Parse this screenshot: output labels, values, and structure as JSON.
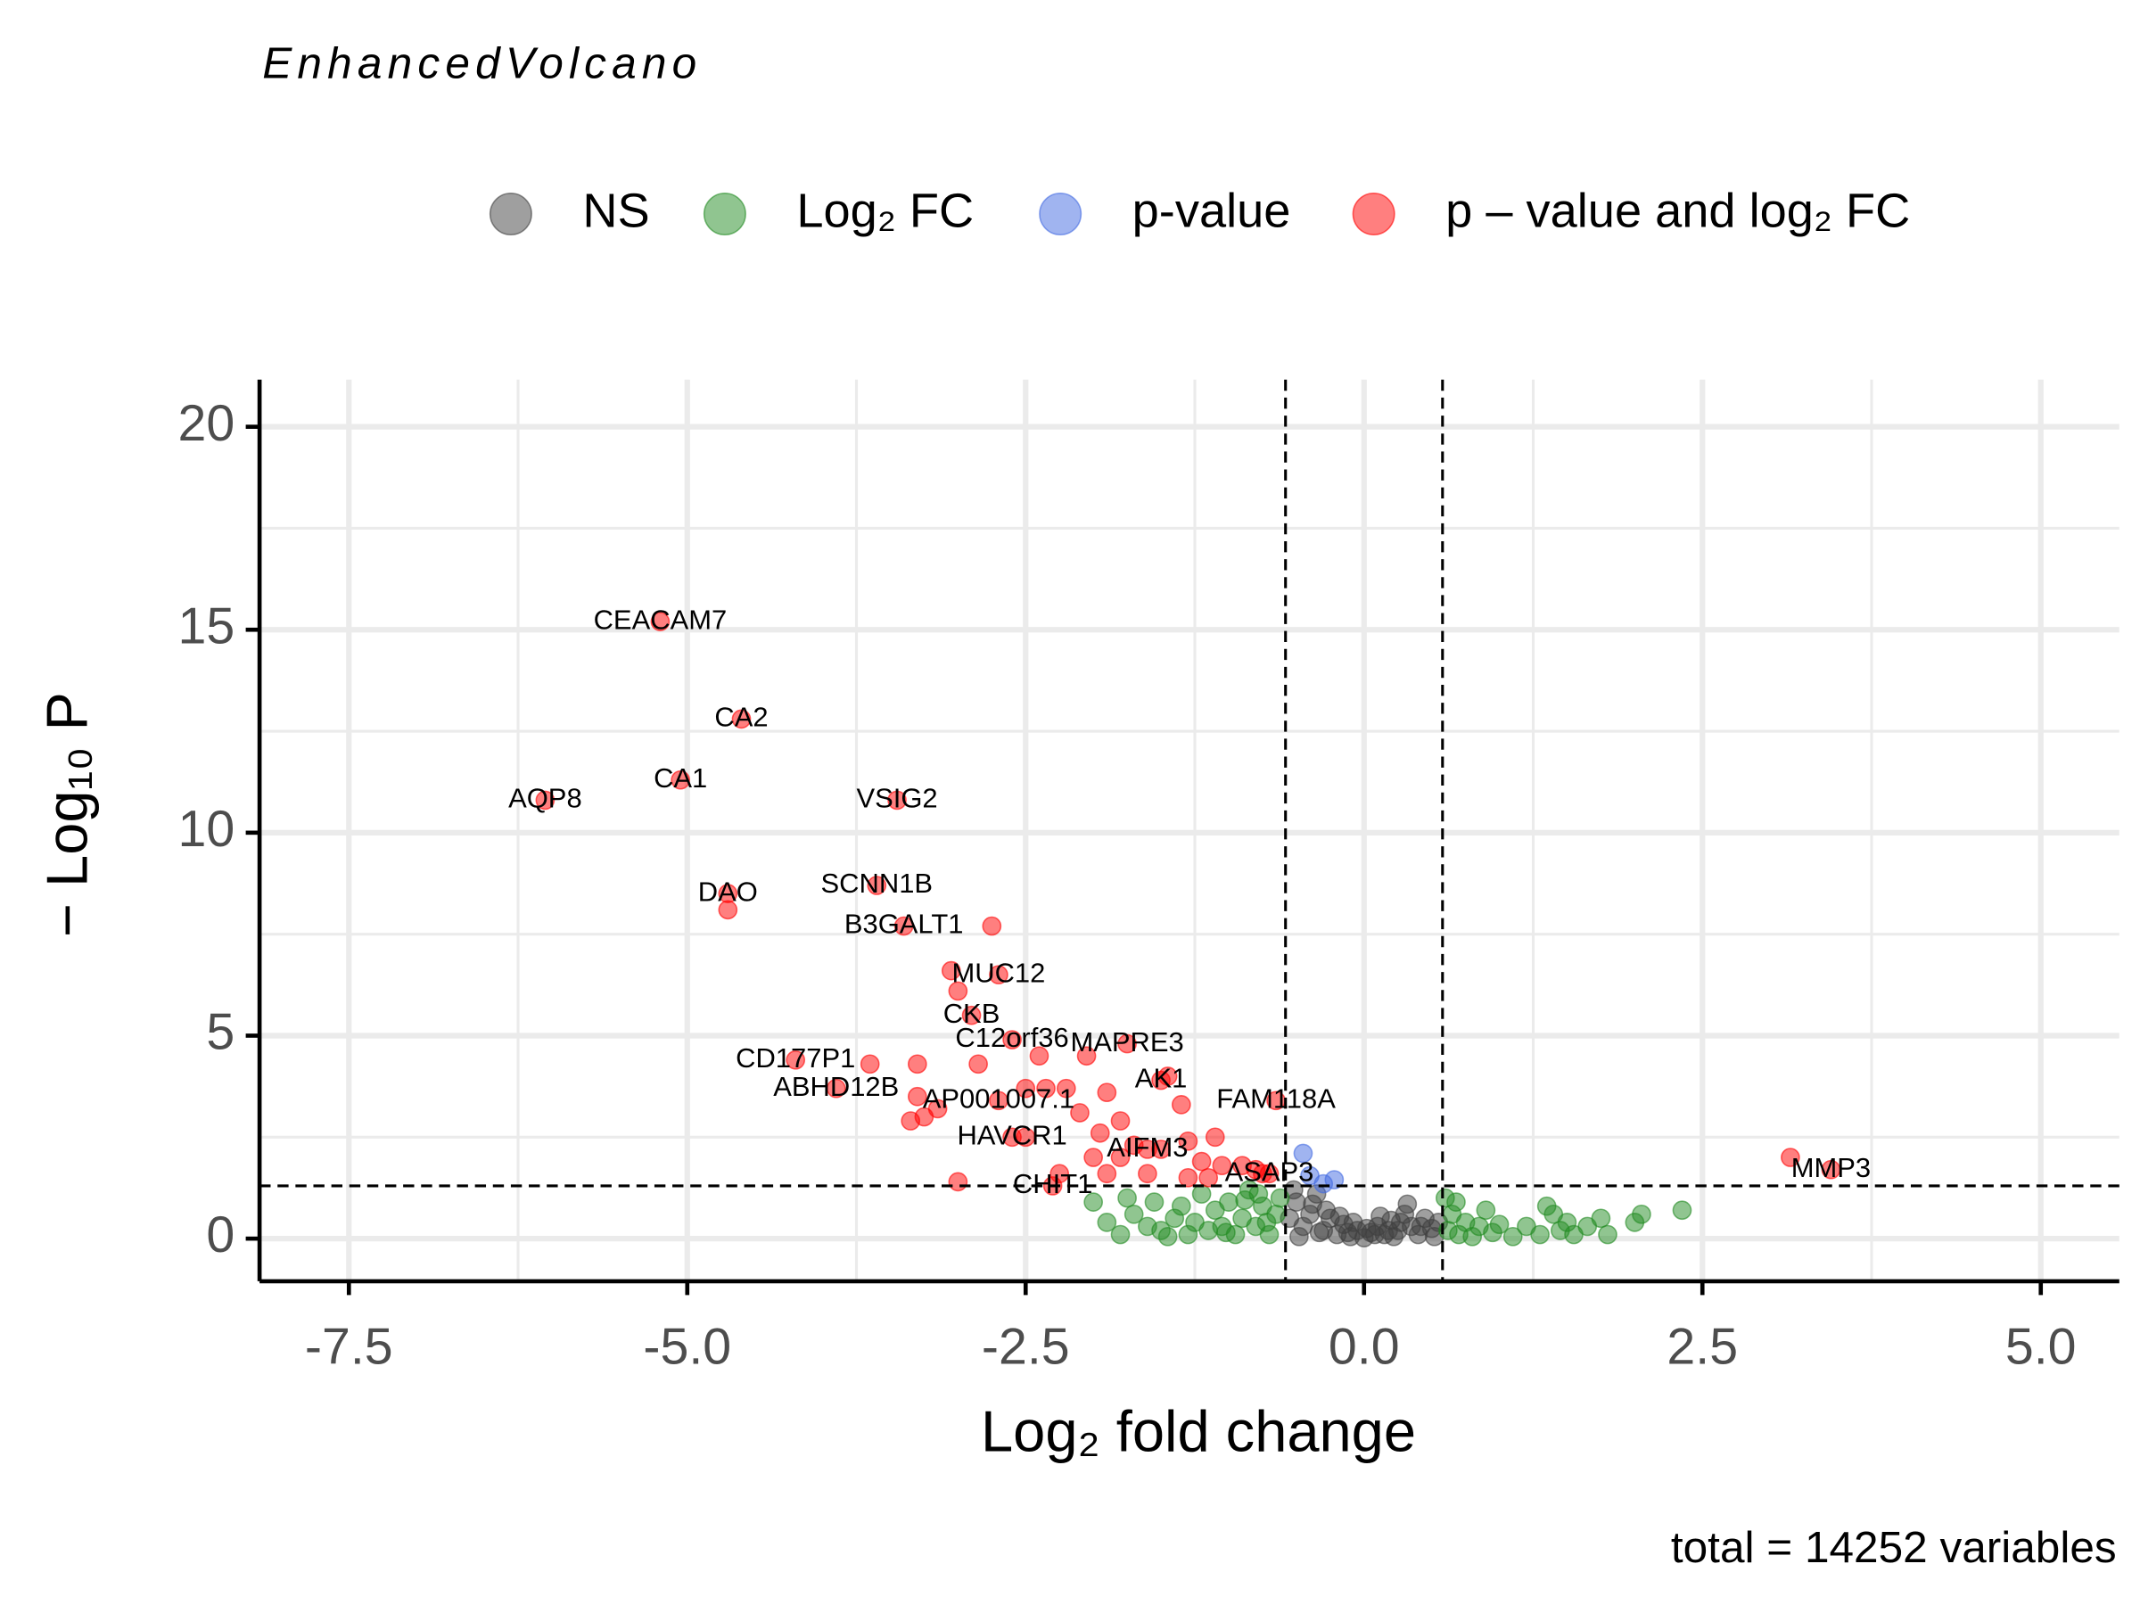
{
  "chart_data": {
    "type": "scatter",
    "title": "EnhancedVolcano",
    "caption": "total = 14252 variables",
    "x_label": "Log₂ fold change",
    "y_label": "− Log₁₀ P",
    "xlim": [
      -8.16,
      5.58
    ],
    "ylim": [
      -1.05,
      21.16
    ],
    "xticks": [
      -7.5,
      {
        "value": -5,
        "label": "-5.0"
      },
      -2.5,
      {
        "value": 0,
        "label": "0.0"
      },
      2.5,
      {
        "value": 5,
        "label": "5.0"
      }
    ],
    "yticks": [
      0,
      5,
      10,
      15,
      20
    ],
    "grid": true,
    "minor_grid": true,
    "fc_cutoffs": [
      -0.58,
      0.58
    ],
    "p_cutoff": 1.3,
    "legend": "top",
    "series": [
      {
        "name": "NS",
        "color": "#404040",
        "x": [
          -0.5,
          -0.45,
          -0.4,
          -0.35,
          -0.3,
          -0.25,
          -0.2,
          -0.15,
          -0.1,
          -0.05,
          0,
          0.05,
          0.1,
          0.15,
          0.2,
          0.25,
          0.3,
          0.35,
          0.4,
          0.45,
          0.5,
          0.55,
          -0.55,
          -0.52,
          -0.48,
          -0.38,
          -0.28,
          -0.18,
          -0.08,
          0.02,
          0.12,
          0.22,
          0.32,
          0.42,
          0.52,
          -0.33,
          0.27,
          0.08,
          -0.12,
          0.18
        ],
        "values": [
          0.9,
          0.3,
          0.6,
          1.1,
          0.2,
          0.5,
          0.1,
          0.35,
          0.05,
          0.2,
          0.02,
          0.15,
          0.3,
          0.1,
          0.45,
          0.2,
          0.6,
          0.3,
          0.1,
          0.5,
          0.25,
          0.4,
          0.5,
          1.2,
          0.05,
          0.85,
          0.7,
          0.55,
          0.4,
          0.25,
          0.55,
          0.05,
          0.85,
          0.3,
          0.05,
          0.15,
          0.4,
          0.1,
          0.15,
          0.2
        ]
      },
      {
        "name": "Log₂ FC",
        "color": "#228B22",
        "x": [
          -1.9,
          -1.8,
          -1.7,
          -1.6,
          -1.55,
          -1.5,
          -1.4,
          -1.35,
          -1.3,
          -1.25,
          -1.2,
          -1.15,
          -1.1,
          -1.05,
          -1.0,
          -0.95,
          -0.9,
          -0.85,
          -0.8,
          -0.75,
          -0.7,
          -0.65,
          -0.62,
          -2.0,
          -1.75,
          -1.45,
          -0.88,
          -0.72,
          -1.02,
          -0.78,
          0.62,
          0.65,
          0.7,
          0.75,
          0.8,
          0.85,
          0.9,
          0.95,
          1.0,
          1.1,
          1.2,
          1.3,
          1.4,
          1.45,
          1.55,
          1.65,
          1.75,
          1.8,
          2.0,
          2.05,
          2.35,
          0.68,
          1.5,
          1.35,
          0.6
        ],
        "values": [
          0.4,
          0.1,
          0.6,
          0.3,
          0.9,
          0.2,
          0.5,
          0.8,
          0.1,
          0.4,
          1.1,
          0.2,
          0.7,
          0.3,
          0.9,
          0.1,
          0.5,
          1.2,
          0.3,
          0.8,
          0.1,
          0.6,
          1.0,
          0.9,
          1.0,
          0.05,
          0.95,
          0.4,
          0.15,
          1.1,
          0.2,
          0.6,
          0.1,
          0.4,
          0.05,
          0.3,
          0.7,
          0.15,
          0.35,
          0.05,
          0.3,
          0.1,
          0.6,
          0.2,
          0.1,
          0.3,
          0.5,
          0.1,
          0.4,
          0.6,
          0.7,
          0.9,
          0.4,
          0.8,
          1.0
        ]
      },
      {
        "name": "p-value",
        "color": "#4169E1",
        "x": [
          -0.45,
          -0.4,
          -0.3,
          -0.22
        ],
        "values": [
          2.1,
          1.55,
          1.35,
          1.45
        ]
      },
      {
        "name": "p – value and log₂ FC",
        "color": "#FF0000",
        "x": [
          -5.2,
          -4.6,
          -5.05,
          -6.05,
          -3.45,
          -3.6,
          -4.7,
          -3.4,
          -2.7,
          -2.9,
          -2.6,
          -1.75,
          -4.2,
          -1.5,
          -3.9,
          -0.65,
          -2.7,
          -2.6,
          -1.6,
          -0.7,
          -2.3,
          3.45,
          -2.75,
          -3.05,
          -3.0,
          -4.7,
          -3.3,
          -3.65,
          -2.85,
          -2.4,
          -2.05,
          -3.3,
          -3.15,
          -3.25,
          -3.35,
          -2.5,
          -2.2,
          -1.9,
          -1.45,
          -1.35,
          -2.1,
          -1.8,
          -1.7,
          -1.95,
          -1.3,
          -2.0,
          -1.8,
          -1.6,
          -1.2,
          -1.05,
          -0.9,
          -0.75,
          -1.3,
          -1.15,
          -2.25,
          -3.0,
          -1.9,
          -2.5,
          -2.35,
          -1.5,
          -1.1,
          -0.8,
          3.15
        ],
        "values": [
          15.2,
          12.8,
          11.3,
          10.8,
          10.8,
          8.7,
          8.5,
          7.7,
          6.5,
          5.5,
          4.9,
          4.8,
          4.4,
          3.9,
          3.7,
          3.4,
          3.4,
          2.5,
          2.2,
          1.6,
          1.3,
          1.7,
          7.7,
          6.6,
          6.1,
          8.1,
          4.3,
          4.3,
          4.3,
          4.5,
          4.5,
          3.5,
          3.2,
          3.0,
          2.9,
          3.7,
          3.7,
          3.6,
          4.0,
          3.3,
          3.1,
          2.9,
          2.3,
          2.6,
          2.4,
          2.0,
          2.0,
          1.6,
          1.9,
          1.8,
          1.8,
          1.6,
          1.5,
          1.5,
          1.6,
          1.4,
          1.6,
          2.5,
          3.7,
          2.2,
          2.5,
          1.7,
          2.0
        ],
        "labels": [
          "CEACAM7",
          "CA2",
          "CA1",
          "AQP8",
          "VSIG2",
          "SCNN1B",
          "DAO",
          "B3GALT1",
          "MUC12",
          "CKB",
          "C12orf36",
          "MAPRE3",
          "CD177P1",
          "AK1",
          "ABHD12B",
          "FAM118A",
          "AP001007.1",
          "HAVCR1",
          "AIFM3",
          "ASAP3",
          "CHIT1",
          "MMP3",
          null,
          null,
          null,
          null,
          null,
          null,
          null,
          null,
          null,
          null,
          null,
          null,
          null,
          null,
          null,
          null,
          null,
          null,
          null,
          null,
          null,
          null,
          null,
          null,
          null,
          null,
          null,
          null,
          null,
          null,
          null,
          null,
          null,
          null,
          null,
          null,
          null,
          null,
          null,
          null,
          null
        ]
      }
    ]
  }
}
